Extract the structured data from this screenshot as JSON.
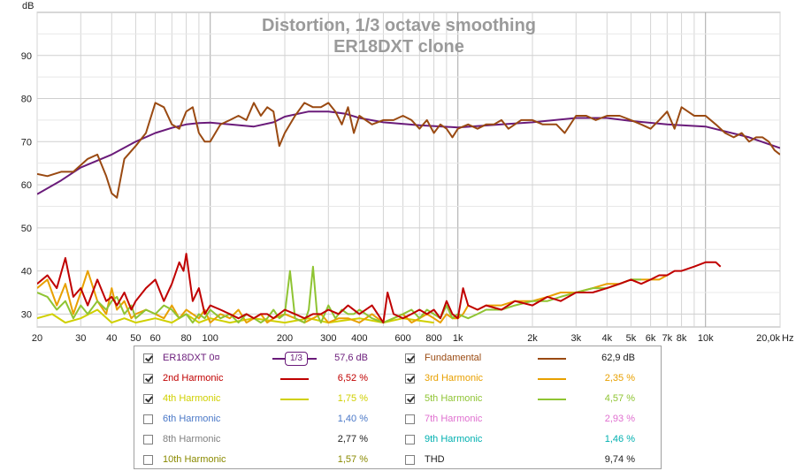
{
  "chart_data": {
    "type": "line",
    "title": "Distortion, 1/3 octave smoothing",
    "subtitle": "ER18DXT clone",
    "ylabel": "dB",
    "xunit": "Hz",
    "xscale": "log",
    "xlim": [
      20,
      20000
    ],
    "ylim": [
      27,
      100
    ],
    "grid": true,
    "x_ticks": [
      {
        "v": 20,
        "label": "20"
      },
      {
        "v": 30,
        "label": "30"
      },
      {
        "v": 40,
        "label": "40"
      },
      {
        "v": 50,
        "label": "50"
      },
      {
        "v": 60,
        "label": "60"
      },
      {
        "v": 80,
        "label": "80"
      },
      {
        "v": 100,
        "label": "100"
      },
      {
        "v": 200,
        "label": "200"
      },
      {
        "v": 300,
        "label": "300"
      },
      {
        "v": 400,
        "label": "400"
      },
      {
        "v": 600,
        "label": "600"
      },
      {
        "v": 800,
        "label": "800"
      },
      {
        "v": 1000,
        "label": "1k"
      },
      {
        "v": 2000,
        "label": "2k"
      },
      {
        "v": 3000,
        "label": "3k"
      },
      {
        "v": 4000,
        "label": "4k"
      },
      {
        "v": 5000,
        "label": "5k"
      },
      {
        "v": 6000,
        "label": "6k"
      },
      {
        "v": 7000,
        "label": "7k"
      },
      {
        "v": 8000,
        "label": "8k"
      },
      {
        "v": 10000,
        "label": "10k"
      },
      {
        "v": 20000,
        "label": "20,0k"
      }
    ],
    "y_ticks": [
      30,
      40,
      50,
      60,
      70,
      80,
      90
    ],
    "series": [
      {
        "name": "Fundamental",
        "color": "#9a4a12",
        "x": [
          20,
          22,
          25,
          28,
          32,
          35,
          38,
          40,
          42,
          45,
          50,
          55,
          60,
          65,
          70,
          75,
          80,
          85,
          90,
          95,
          100,
          110,
          120,
          130,
          140,
          150,
          160,
          170,
          180,
          190,
          200,
          220,
          240,
          260,
          280,
          300,
          320,
          340,
          360,
          380,
          400,
          450,
          500,
          550,
          600,
          650,
          700,
          750,
          800,
          850,
          900,
          950,
          1000,
          1100,
          1200,
          1300,
          1400,
          1500,
          1600,
          1800,
          2000,
          2200,
          2500,
          2700,
          3000,
          3300,
          3600,
          4000,
          4500,
          5000,
          5500,
          6000,
          6500,
          7000,
          7500,
          8000,
          9000,
          10000,
          11000,
          12000,
          13000,
          14000,
          15000,
          16000,
          17000,
          18000,
          19000,
          20000
        ],
        "y": [
          62.5,
          62,
          63,
          63,
          66,
          67,
          62,
          58,
          57,
          66,
          69,
          72,
          79,
          78,
          74,
          73,
          77,
          78,
          72,
          70,
          70,
          74,
          75,
          76,
          75,
          79,
          76,
          78,
          77,
          69,
          72,
          76,
          79,
          78,
          78,
          79,
          77,
          74,
          78,
          72,
          76,
          74,
          75,
          75,
          76,
          75,
          73,
          75,
          72,
          74,
          73,
          71,
          73,
          74,
          73,
          74,
          74,
          75,
          73,
          75,
          75,
          74,
          74,
          72,
          76,
          76,
          75,
          76,
          76,
          75,
          74,
          73,
          75,
          77,
          73,
          78,
          76,
          76,
          74,
          72,
          71,
          72,
          70,
          71,
          71,
          70,
          68,
          67
        ]
      },
      {
        "name": "ER18DXT 0¤",
        "color": "#6a1b7a",
        "x": [
          20,
          25,
          30,
          40,
          50,
          60,
          70,
          80,
          90,
          100,
          120,
          150,
          180,
          200,
          250,
          300,
          350,
          400,
          500,
          700,
          1000,
          1500,
          2000,
          3000,
          4000,
          5000,
          7000,
          10000,
          15000,
          20000
        ],
        "y": [
          57.8,
          61,
          64,
          67,
          70,
          72,
          73.2,
          74,
          74.3,
          74.4,
          74,
          73.5,
          74.5,
          75.8,
          77,
          77,
          76.5,
          75.5,
          74.5,
          73.8,
          73.3,
          74,
          74.5,
          75.5,
          75.5,
          74.8,
          74,
          73.5,
          71,
          68.5
        ]
      },
      {
        "name": "2nd Harmonic",
        "color": "#c00000",
        "x": [
          20,
          22,
          24,
          26,
          28,
          30,
          32,
          35,
          38,
          40,
          42,
          45,
          48,
          50,
          55,
          60,
          65,
          70,
          75,
          78,
          80,
          85,
          90,
          95,
          100,
          110,
          120,
          130,
          140,
          150,
          160,
          170,
          180,
          200,
          220,
          240,
          260,
          280,
          300,
          330,
          360,
          400,
          450,
          500,
          520,
          550,
          600,
          650,
          700,
          750,
          800,
          850,
          900,
          950,
          1000,
          1050,
          1100,
          1200,
          1300,
          1500,
          1700,
          2000,
          2300,
          2600,
          3000,
          3500,
          4000,
          4500,
          5000,
          5500,
          6000,
          6500,
          7000,
          7500,
          8000,
          9000,
          10000,
          11000,
          11500
        ],
        "y": [
          37,
          39,
          36,
          43,
          34,
          36,
          32,
          38,
          33,
          34,
          32,
          35,
          31,
          33,
          36,
          38,
          33,
          37,
          42,
          40,
          44,
          33,
          36,
          30,
          32,
          31,
          30,
          29,
          30,
          29,
          30,
          30,
          29,
          31,
          30,
          29,
          30,
          30,
          31,
          30,
          32,
          30,
          32,
          28,
          35,
          30,
          29,
          30,
          31,
          30,
          31,
          29,
          33,
          30,
          29,
          36,
          32,
          31,
          32,
          31,
          33,
          32,
          34,
          33,
          35,
          35,
          36,
          37,
          38,
          37,
          38,
          39,
          39,
          40,
          40,
          41,
          42,
          42,
          41
        ]
      },
      {
        "name": "3rd Harmonic",
        "color": "#e8a000",
        "x": [
          20,
          22,
          24,
          26,
          28,
          30,
          32,
          35,
          38,
          40,
          42,
          45,
          48,
          50,
          55,
          60,
          65,
          70,
          75,
          80,
          85,
          90,
          95,
          100,
          110,
          120,
          130,
          140,
          150,
          160,
          170,
          180,
          200,
          220,
          240,
          260,
          280,
          300,
          330,
          360,
          400,
          450,
          500,
          550,
          600,
          650,
          700,
          750,
          800,
          850,
          900,
          950,
          1000,
          1050,
          1100,
          1200,
          1300,
          1500,
          1700,
          2000,
          2300,
          2600,
          3000,
          3500,
          4000,
          4500,
          5000,
          5500,
          6000,
          6500,
          7000
        ],
        "y": [
          36,
          38,
          32,
          37,
          30,
          35,
          40,
          33,
          30,
          36,
          31,
          33,
          29,
          30,
          31,
          30,
          29,
          32,
          29,
          31,
          30,
          29,
          31,
          28,
          30,
          29,
          31,
          28,
          29,
          30,
          28,
          29,
          30,
          29,
          28,
          29,
          30,
          28,
          29,
          29,
          28,
          30,
          28,
          29,
          30,
          28,
          29,
          30,
          29,
          28,
          30,
          29,
          29,
          30,
          32,
          31,
          32,
          32,
          33,
          33,
          34,
          35,
          35,
          36,
          37,
          37,
          38,
          38,
          38,
          38,
          39
        ]
      },
      {
        "name": "4th Harmonic",
        "color": "#d0d000",
        "x": [
          20,
          23,
          26,
          30,
          35,
          40,
          45,
          50,
          60,
          70,
          80,
          90,
          100,
          120,
          150,
          200,
          250,
          300,
          400,
          500,
          600,
          800
        ],
        "y": [
          29,
          30,
          28,
          29,
          31,
          28,
          29,
          28,
          29,
          28,
          30,
          28,
          29,
          28,
          29,
          28,
          29,
          28,
          29,
          28,
          29,
          28
        ]
      },
      {
        "name": "5th Harmonic",
        "color": "#8fc433",
        "x": [
          20,
          22,
          24,
          26,
          28,
          30,
          32,
          35,
          38,
          40,
          42,
          45,
          48,
          50,
          55,
          60,
          65,
          70,
          75,
          80,
          85,
          90,
          95,
          100,
          110,
          120,
          130,
          140,
          150,
          160,
          170,
          180,
          190,
          200,
          210,
          220,
          240,
          250,
          260,
          270,
          280,
          300,
          320,
          340,
          360,
          380,
          400,
          450,
          500,
          550,
          600,
          650,
          700,
          750,
          800,
          850,
          900,
          950,
          1000,
          1100,
          1200,
          1300,
          1500,
          1700,
          2000,
          2300,
          2600,
          3000,
          3500,
          4000,
          4500,
          5000,
          5500
        ],
        "y": [
          35,
          34,
          31,
          33,
          29,
          32,
          30,
          33,
          31,
          33,
          34,
          30,
          32,
          29,
          31,
          30,
          32,
          31,
          29,
          30,
          28,
          30,
          29,
          31,
          29,
          30,
          28,
          30,
          29,
          28,
          29,
          31,
          29,
          30,
          40,
          29,
          28,
          31,
          41,
          30,
          28,
          32,
          29,
          31,
          30,
          30,
          31,
          29,
          28,
          29,
          30,
          31,
          29,
          31,
          30,
          29,
          32,
          29,
          30,
          29,
          30,
          31,
          31,
          32,
          33,
          33,
          34,
          35,
          36,
          36,
          37,
          38,
          38
        ]
      }
    ]
  },
  "legend": {
    "rows": [
      [
        {
          "name": "ER18DXT 0¤",
          "checked": true,
          "color": "#6a1b7a",
          "swatch": "smoothing",
          "smoothing_label": "1/3",
          "value": "57,6 dB"
        },
        {
          "name": "Fundamental",
          "checked": true,
          "color": "#9a4a12",
          "value": "62,9 dB"
        }
      ],
      [
        {
          "name": "2nd Harmonic",
          "checked": true,
          "color": "#c00000",
          "value": "6,52 %"
        },
        {
          "name": "3rd Harmonic",
          "checked": true,
          "color": "#e8a000",
          "value": "2,35 %"
        }
      ],
      [
        {
          "name": "4th Harmonic",
          "checked": true,
          "color": "#d0d000",
          "value": "1,75 %"
        },
        {
          "name": "5th Harmonic",
          "checked": true,
          "color": "#8fc433",
          "value": "4,57 %"
        }
      ],
      [
        {
          "name": "6th Harmonic",
          "checked": false,
          "color": "#4a78c8",
          "value": "1,40 %"
        },
        {
          "name": "7th Harmonic",
          "checked": false,
          "color": "#e070d0",
          "value": "2,93 %"
        }
      ],
      [
        {
          "name": "8th Harmonic",
          "checked": false,
          "color": "#808080",
          "value": "2,77 %"
        },
        {
          "name": "9th Harmonic",
          "checked": false,
          "color": "#00b0b0",
          "value": "1,46 %"
        }
      ],
      [
        {
          "name": "10th Harmonic",
          "checked": false,
          "color": "#8a8a00",
          "value": "1,57 %"
        },
        {
          "name": "THD",
          "checked": false,
          "color": "#000000",
          "value": "9,74 %"
        }
      ]
    ]
  }
}
